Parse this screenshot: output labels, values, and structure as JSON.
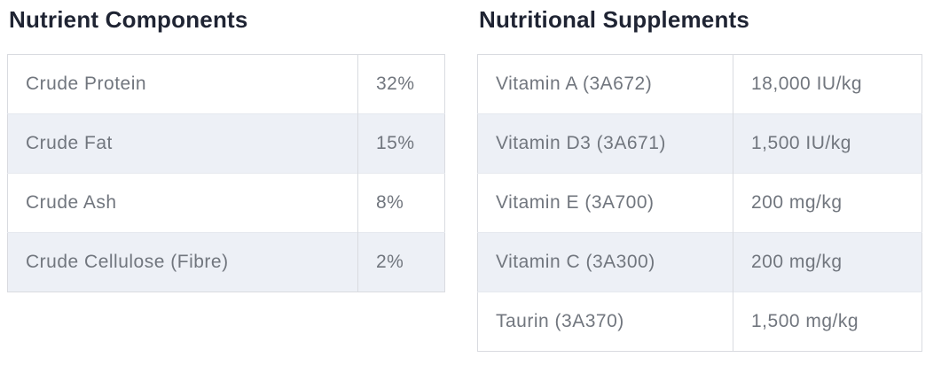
{
  "sections": {
    "nutrients": {
      "title": "Nutrient Components",
      "rows": [
        {
          "label": "Crude Protein",
          "value": "32%"
        },
        {
          "label": "Crude Fat",
          "value": "15%"
        },
        {
          "label": "Crude Ash",
          "value": "8%"
        },
        {
          "label": "Crude Cellulose (Fibre)",
          "value": "2%"
        }
      ]
    },
    "supplements": {
      "title": "Nutritional Supplements",
      "rows": [
        {
          "label": "Vitamin A (3A672)",
          "value": "18,000 IU/kg"
        },
        {
          "label": "Vitamin D3 (3A671)",
          "value": "1,500 IU/kg"
        },
        {
          "label": "Vitamin E (3A700)",
          "value": "200 mg/kg"
        },
        {
          "label": "Vitamin C (3A300)",
          "value": "200 mg/kg"
        },
        {
          "label": "Taurin (3A370)",
          "value": "1,500 mg/kg"
        }
      ]
    }
  },
  "colors": {
    "title_text": "#1f2433",
    "cell_text": "#71767e",
    "row_alt_background": "#edf0f6",
    "table_border": "#d9dbe0",
    "row_divider": "#e5e8ee"
  }
}
